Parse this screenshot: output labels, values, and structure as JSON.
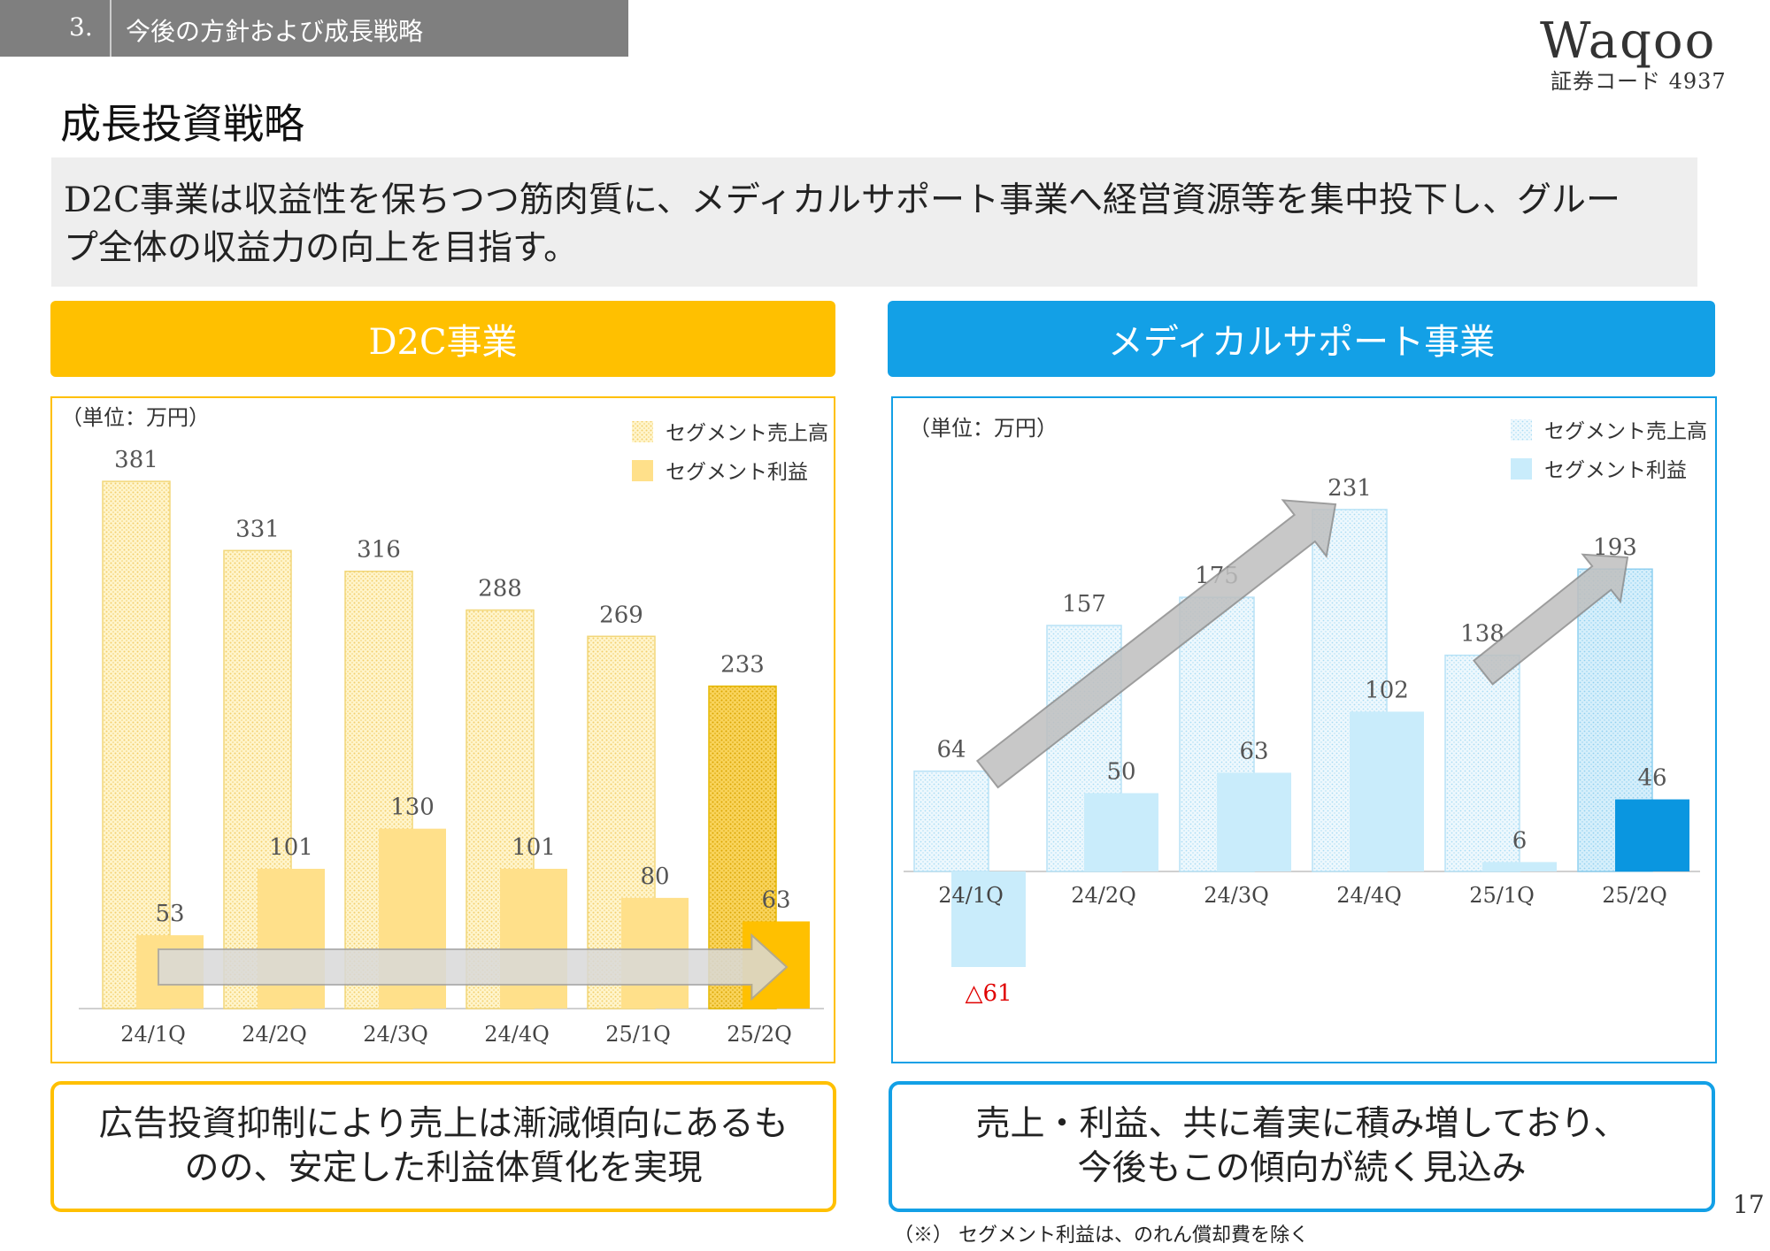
{
  "header": {
    "section_number": "3.",
    "section_title": "今後の方針および成長戦略",
    "logo_text": "Waqoo",
    "stock_code": "証券コード 4937",
    "page_title": "成長投資戦略"
  },
  "lead": {
    "text_line1": "D2C事業は収益性を保ちつつ筋肉質に、メディカルサポート事業へ経営資源等を集中投下し、グルー",
    "text_line2": "プ全体の収益力の向上を目指す。"
  },
  "segments": {
    "d2c_title": "D2C事業",
    "medical_title": "メディカルサポート事業"
  },
  "chart_data": [
    {
      "type": "bar",
      "unit_label": "（単位：万円）",
      "categories": [
        "24/1Q",
        "24/2Q",
        "24/3Q",
        "24/4Q",
        "25/1Q",
        "25/2Q"
      ],
      "series": [
        {
          "name": "セグメント売上高",
          "values": [
            381,
            331,
            316,
            288,
            269,
            233
          ],
          "labels": [
            "381",
            "331",
            "316",
            "288",
            "269",
            "233"
          ]
        },
        {
          "name": "セグメント利益",
          "values": [
            53,
            101,
            130,
            101,
            80,
            63
          ],
          "labels": [
            "53",
            "101",
            "130",
            "101",
            "80",
            "63"
          ]
        }
      ],
      "ylim": [
        0,
        390
      ],
      "grid": false,
      "legend": "top-right",
      "colors": {
        "sales": "#ffe699",
        "profit": "#ffe08a",
        "highlight_sales": "#f5c842",
        "highlight_profit": "#ffc000",
        "arrow": "#d0d0d0"
      },
      "highlight_category": "25/2Q"
    },
    {
      "type": "bar",
      "unit_label": "（単位：万円）",
      "categories": [
        "24/1Q",
        "24/2Q",
        "24/3Q",
        "24/4Q",
        "25/1Q",
        "25/2Q"
      ],
      "series": [
        {
          "name": "セグメント売上高",
          "values": [
            64,
            157,
            175,
            231,
            138,
            193
          ],
          "labels": [
            "64",
            "157",
            "175",
            "231",
            "138",
            "193"
          ]
        },
        {
          "name": "セグメント利益",
          "values": [
            -61,
            50,
            63,
            102,
            6,
            46
          ],
          "labels": [
            "△61",
            "50",
            "63",
            "102",
            "6",
            "46"
          ]
        }
      ],
      "ylim": [
        -61,
        240
      ],
      "grid": false,
      "legend": "top-right",
      "colors": {
        "sales": "#dff2fb",
        "profit": "#c9ecfb",
        "highlight_sales": "#c9ecfb",
        "highlight_profit": "#0a96e0",
        "arrow": "#a6a6a6",
        "negative_label": "#e00000"
      },
      "highlight_category": "25/2Q"
    }
  ],
  "summary": {
    "d2c_line1": "広告投資抑制により売上は漸減傾向にあるも",
    "d2c_line2": "のの、安定した利益体質化を実現",
    "med_line1": "売上・利益、共に着実に積み増しており、",
    "med_line2": "今後もこの傾向が続く見込み"
  },
  "footer": {
    "note": "（※） セグメント利益は、のれん償却費を除く",
    "page_number": "17"
  }
}
